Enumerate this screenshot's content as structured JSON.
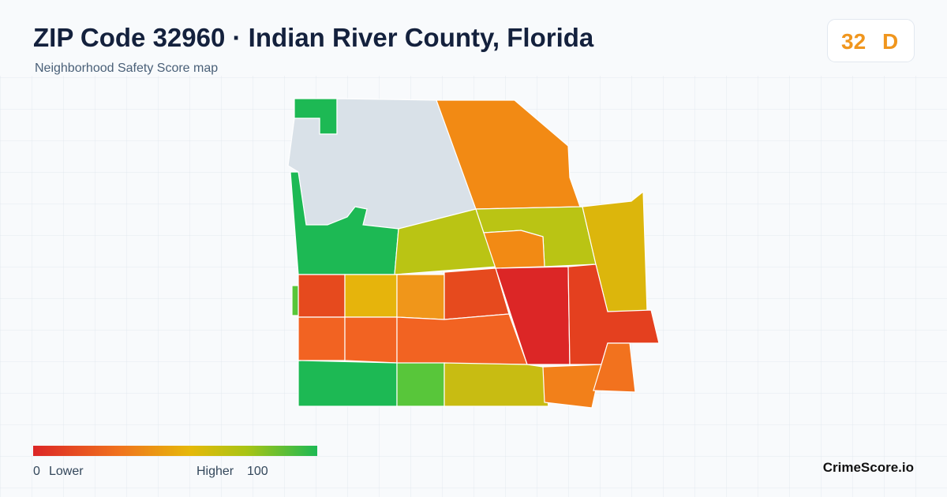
{
  "header": {
    "title": "ZIP Code 32960 · Indian River County, Florida",
    "subtitle": "Neighborhood Safety Score map"
  },
  "badge": {
    "score": 32,
    "grade": "D"
  },
  "legend": {
    "min": 0,
    "min_label": "Lower",
    "max_label": "Higher",
    "max": 100
  },
  "footer": {
    "brand": "CrimeScore.io"
  }
}
